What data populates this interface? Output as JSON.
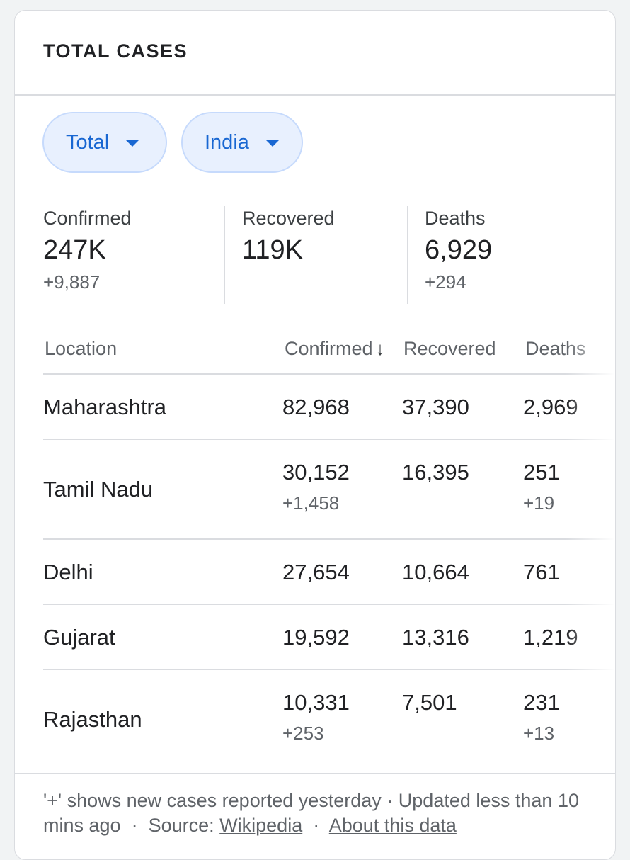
{
  "card": {
    "title": "TOTAL CASES"
  },
  "filters": {
    "scope": {
      "label": "Total",
      "icon": "caret-down-icon"
    },
    "region": {
      "label": "India",
      "icon": "caret-down-icon"
    }
  },
  "summary": {
    "confirmed": {
      "label": "Confirmed",
      "value": "247K",
      "delta": "+9,887"
    },
    "recovered": {
      "label": "Recovered",
      "value": "119K"
    },
    "deaths": {
      "label": "Deaths",
      "value": "6,929",
      "delta": "+294"
    }
  },
  "table": {
    "headers": {
      "location": "Location",
      "confirmed": "Confirmed",
      "confirmed_sort_icon": "↓",
      "recovered": "Recovered",
      "deaths": "Deaths"
    },
    "rows": [
      {
        "location": "Maharashtra",
        "confirmed": "82,968",
        "recovered": "37,390",
        "deaths": "2,969"
      },
      {
        "location": "Tamil Nadu",
        "confirmed": "30,152",
        "confirmed_delta": "+1,458",
        "recovered": "16,395",
        "deaths": "251",
        "deaths_delta": "+19"
      },
      {
        "location": "Delhi",
        "confirmed": "27,654",
        "recovered": "10,664",
        "deaths": "761"
      },
      {
        "location": "Gujarat",
        "confirmed": "19,592",
        "recovered": "13,316",
        "deaths": "1,219"
      },
      {
        "location": "Rajasthan",
        "confirmed": "10,331",
        "confirmed_delta": "+253",
        "recovered": "7,501",
        "deaths": "231",
        "deaths_delta": "+13"
      }
    ]
  },
  "footer": {
    "note": "'+' shows new cases reported yesterday · Updated less than 10 mins ago",
    "separator": "·",
    "source_label": "Source:",
    "source_link": "Wikipedia",
    "about_link": "About this data"
  },
  "colors": {
    "accent": "#1967d2",
    "chip_bg": "#e8f0fe",
    "divider": "#dadce0",
    "muted_text": "#5f6368"
  }
}
